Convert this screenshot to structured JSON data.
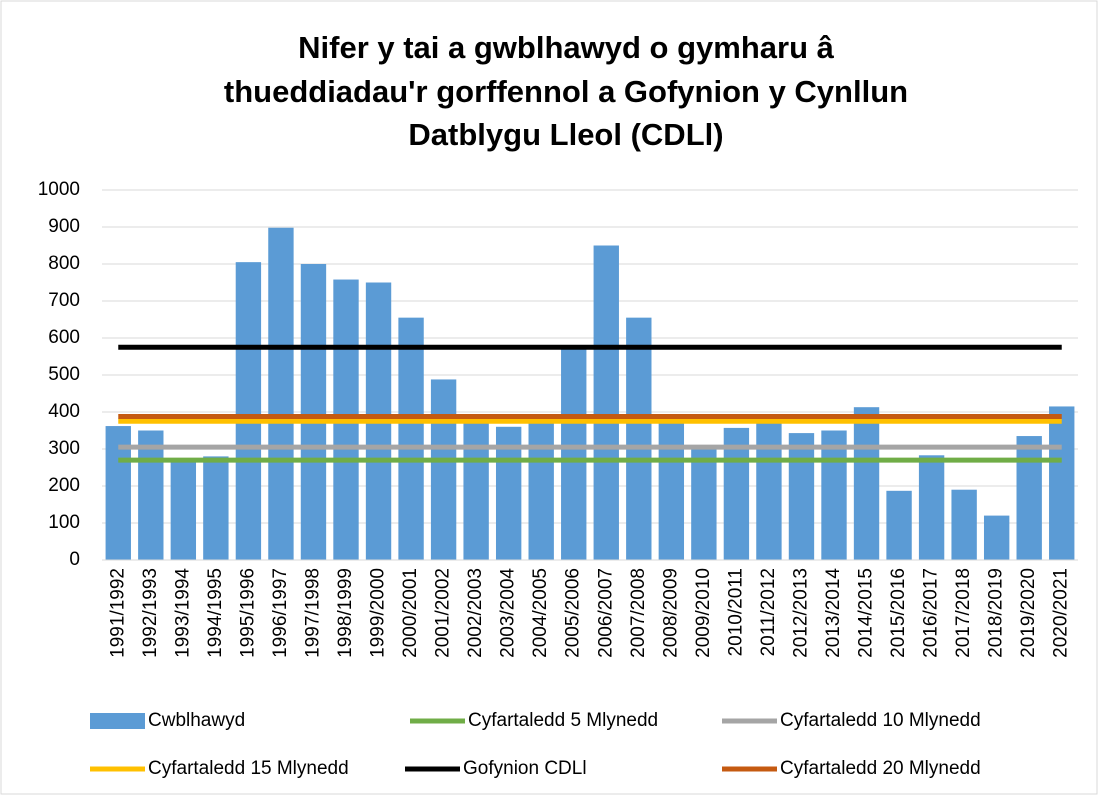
{
  "chart_data": {
    "type": "bar",
    "title": [
      "Nifer y tai a gwblhawyd o gymharu â",
      "thueddiadau'r gorffennol a Gofynion y Cynllun",
      "Datblygu Lleol (CDLl)"
    ],
    "categories": [
      "1991/1992",
      "1992/1993",
      "1993/1994",
      "1994/1995",
      "1995/1996",
      "1996/1997",
      "1997/1998",
      "1998/1999",
      "1999/2000",
      "2000/2001",
      "2001/2002",
      "2002/2003",
      "2003/2004",
      "2004/2005",
      "2005/2006",
      "2006/2007",
      "2007/2008",
      "2008/2009",
      "2009/2010",
      "2010/2011",
      "2011/2012",
      "2012/2013",
      "2013/2014",
      "2014/2015",
      "2015/2016",
      "2016/2017",
      "2017/2018",
      "2018/2019",
      "2019/2020",
      "2020/2021"
    ],
    "series": [
      {
        "name": "Cwblhawyd",
        "color": "#5b9bd5",
        "values": [
          362,
          350,
          265,
          280,
          805,
          898,
          800,
          758,
          750,
          655,
          488,
          375,
          360,
          370,
          580,
          850,
          655,
          375,
          305,
          357,
          375,
          343,
          350,
          413,
          187,
          283,
          190,
          120,
          335,
          415
        ]
      },
      {
        "name": "Cyfartaledd 5 Mlynedd",
        "color": "#70ad47",
        "type": "line",
        "value": 270
      },
      {
        "name": "Cyfartaledd 10 Mlynedd",
        "color": "#a5a5a5",
        "type": "line",
        "value": 305
      },
      {
        "name": "Cyfartaledd 15 Mlynedd",
        "color": "#ffc000",
        "type": "line",
        "value": 375
      },
      {
        "name": "Gofynion CDLl",
        "color": "#000000",
        "type": "line",
        "value": 575
      },
      {
        "name": "Cyfartaledd 20 Mlynedd",
        "color": "#c55a11",
        "type": "line",
        "value": 388
      }
    ],
    "ylim": [
      0,
      1000
    ],
    "yticks": [
      0,
      100,
      200,
      300,
      400,
      500,
      600,
      700,
      800,
      900,
      1000
    ],
    "grid": true
  }
}
